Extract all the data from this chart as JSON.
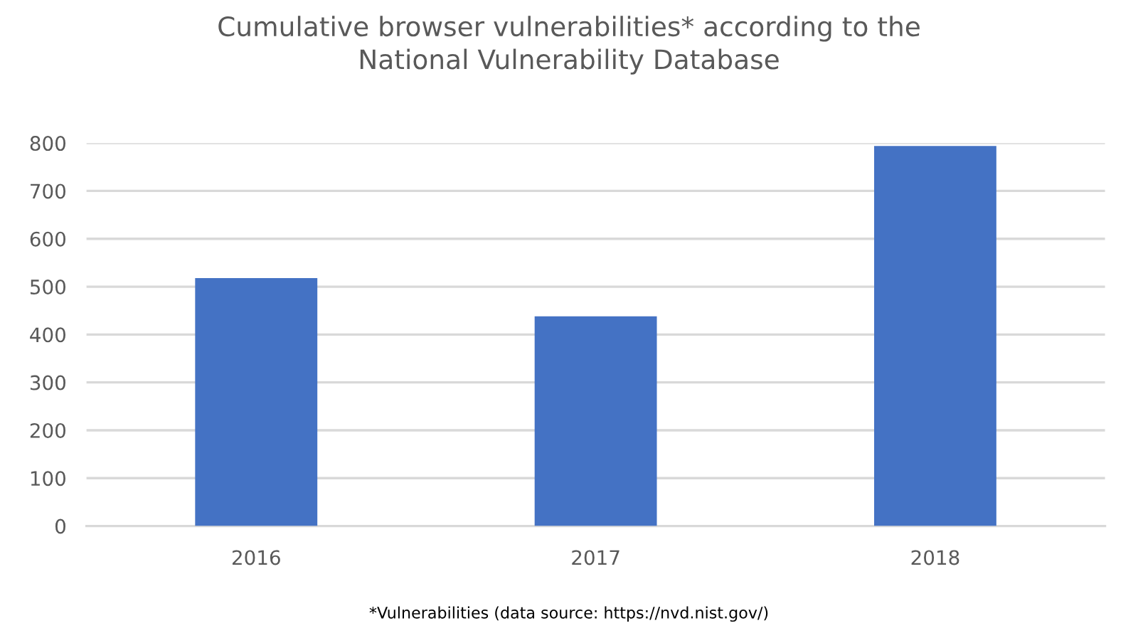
{
  "chart_data": {
    "type": "bar",
    "title": "Cumulative browser vulnerabilities* according to the\nNational Vulnerability Database",
    "categories": [
      "2016",
      "2017",
      "2018"
    ],
    "values": [
      518,
      438,
      794
    ],
    "color": "#4472c4",
    "ylim": [
      0,
      800
    ],
    "yticks": [
      0,
      100,
      200,
      300,
      400,
      500,
      600,
      700,
      800
    ],
    "grid": "y",
    "legend": false,
    "annotations": [
      "*Vulnerabilities (data source: https://nvd.nist.gov/)"
    ]
  }
}
